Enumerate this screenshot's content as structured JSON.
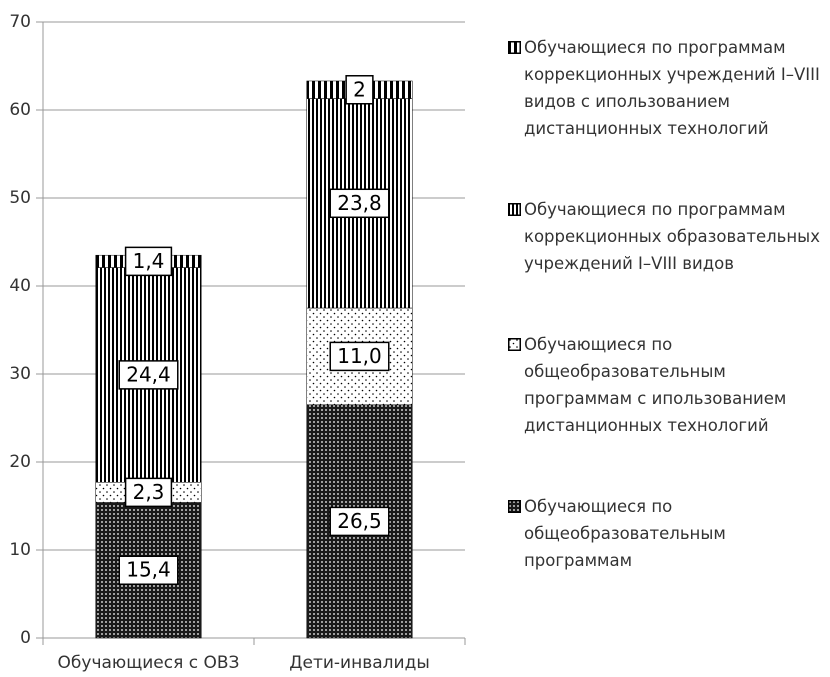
{
  "chart_data": {
    "type": "stacked-bar",
    "categories": [
      "Обучающиеся с ОВЗ",
      "Дети-инвалиды"
    ],
    "series": [
      {
        "name": "Обучающиеся по общеобразовательным программам",
        "color": "#000000",
        "pattern": "dense-dots",
        "values": [
          15.4,
          26.5
        ],
        "value_labels": [
          "15,4",
          "26,5"
        ]
      },
      {
        "name": "Обучающиеся по общеобразовательным программам с ипользованием дистанционных технологий",
        "color": "#000000",
        "pattern": "sparse-dots",
        "values": [
          2.3,
          11.0
        ],
        "value_labels": [
          "2,3",
          "11,0"
        ]
      },
      {
        "name": "Обучающиеся по программам коррекционных образовательных учреждений I–VIII видов",
        "color": "#000000",
        "pattern": "stripes",
        "values": [
          24.4,
          23.8
        ],
        "value_labels": [
          "24,4",
          "23,8"
        ]
      },
      {
        "name": "Обучающиеся по программам коррекционных учреждений I–VIII видов с ипользованием дистанционных технологий",
        "color": "#000000",
        "pattern": "wide-stripes",
        "values": [
          1.4,
          2
        ],
        "value_labels": [
          "1,4",
          "2"
        ]
      }
    ],
    "ylim": [
      0,
      70
    ],
    "yticks": [
      0,
      10,
      20,
      30,
      40,
      50,
      60,
      70
    ],
    "grid": true,
    "legend": "right"
  }
}
